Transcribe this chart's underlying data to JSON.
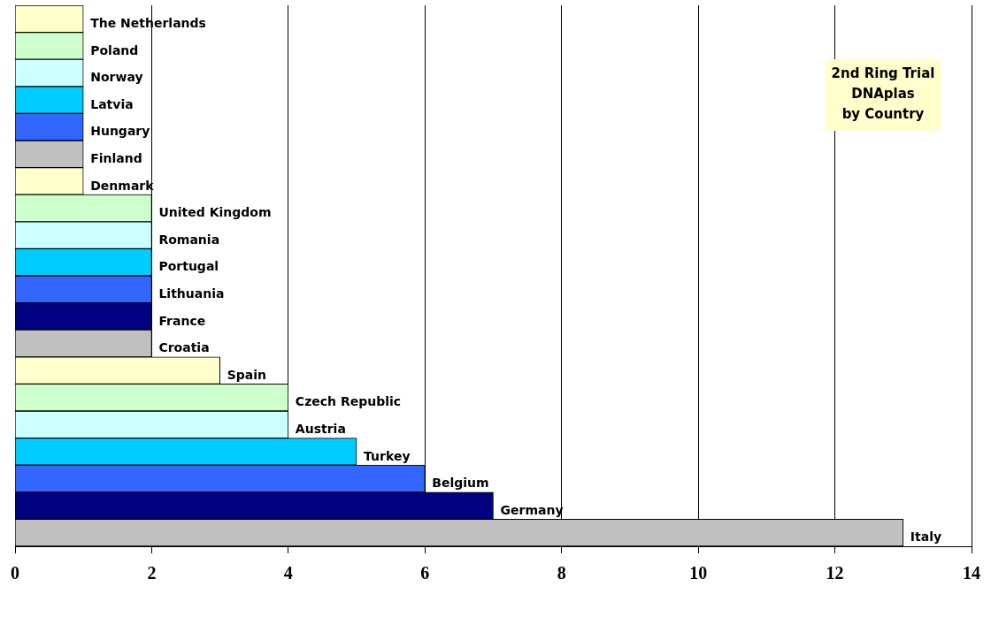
{
  "chart_data": {
    "type": "bar",
    "orientation": "horizontal",
    "title": "2nd Ring Trial\nDNAplas\nby Country",
    "categories": [
      "The Netherlands",
      "Poland",
      "Norway",
      "Latvia",
      "Hungary",
      "Finland",
      "Denmark",
      "United Kingdom",
      "Romania",
      "Portugal",
      "Lithuania",
      "France",
      "Croatia",
      "Spain",
      "Czech Republic",
      "Austria",
      "Turkey",
      "Belgium",
      "Germany",
      "Italy"
    ],
    "values": [
      1,
      1,
      1,
      1,
      1,
      1,
      1,
      2,
      2,
      2,
      2,
      2,
      2,
      3,
      4,
      4,
      5,
      6,
      7,
      13
    ],
    "colors": [
      "#ffffcc",
      "#ccffcc",
      "#ccffff",
      "#00ccff",
      "#3366ff",
      "#c0c0c0",
      "#ffffcc",
      "#ccffcc",
      "#ccffff",
      "#00ccff",
      "#3366ff",
      "#000080",
      "#c0c0c0",
      "#ffffcc",
      "#ccffcc",
      "#ccffff",
      "#00ccff",
      "#3366ff",
      "#000080",
      "#c0c0c0"
    ],
    "xlim": [
      0,
      14
    ],
    "xticks": [
      0,
      2,
      4,
      6,
      8,
      10,
      12,
      14
    ],
    "grid": "x",
    "tick_labels": "x",
    "legend": false
  }
}
